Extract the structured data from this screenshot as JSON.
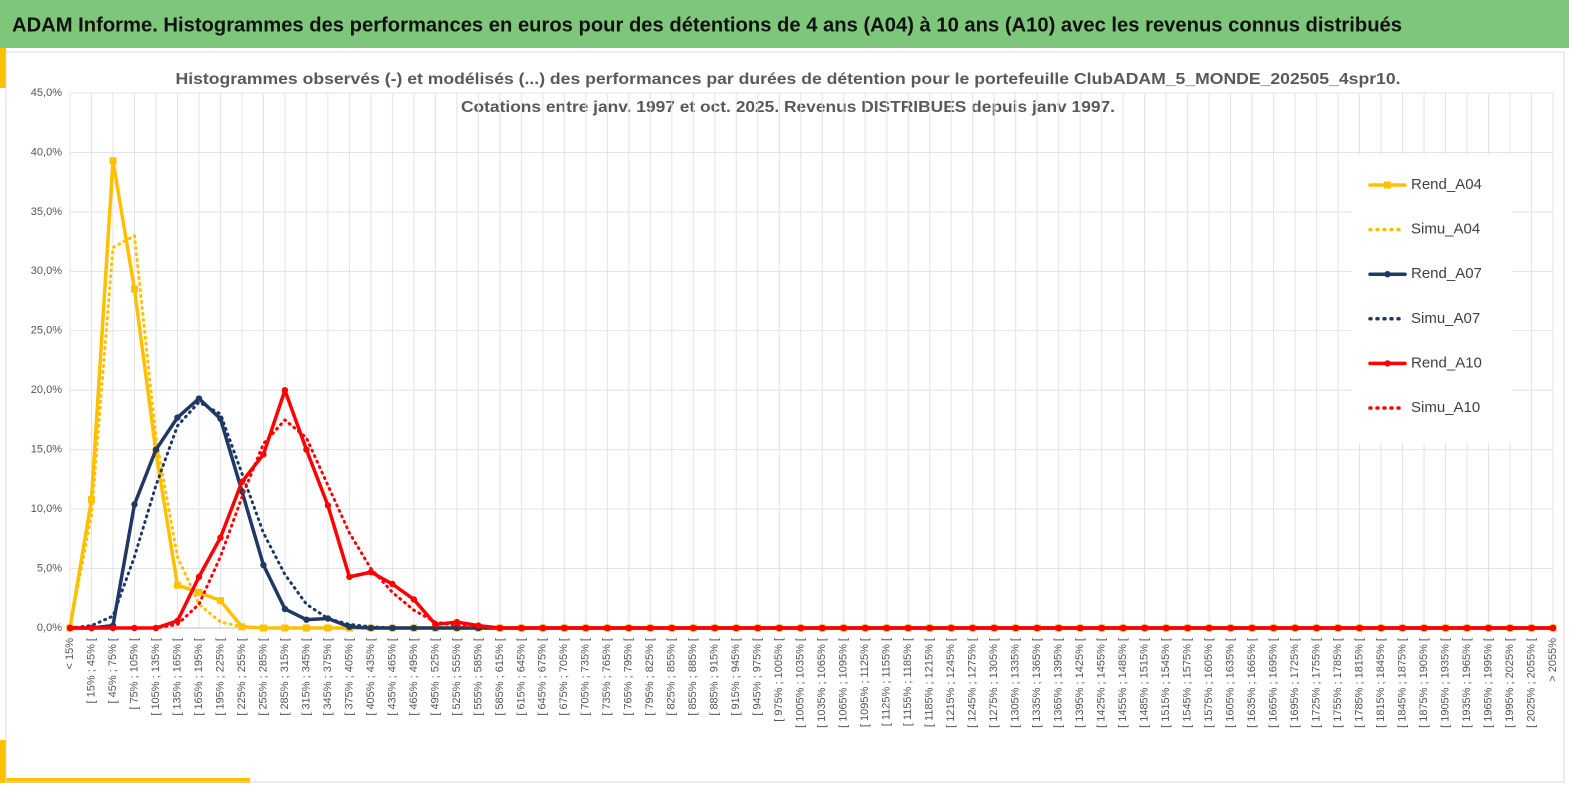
{
  "header": {
    "title": "ADAM Informe. Histogrammes des performances en euros pour des détentions de 4 ans (A04) à 10 ans (A10) avec les revenus connus distribués"
  },
  "chart_data": {
    "type": "line",
    "title": "Histogrammes observés (-) et modélisés (...) des performances par durées de détention pour le portefeuille ClubADAM_5_MONDE_202505_4spr10.",
    "subtitle": "Cotations entre janv. 1997 et oct. 2025. Revenus DISTRIBUES depuis janv 1997.",
    "categories": [
      "< 15%",
      "[ 15% ; 45% [",
      "[ 45% ; 75% [",
      "[ 75% ; 105% [",
      "[ 105% ; 135% [",
      "[ 135% ; 165% [",
      "[ 165% ; 195% [",
      "[ 195% ; 225% [",
      "[ 225% ; 255% [",
      "[ 255% ; 285% [",
      "[ 285% ; 315% [",
      "[ 315% ; 345% [",
      "[ 345% ; 375% [",
      "[ 375% ; 405% [",
      "[ 405% ; 435% [",
      "[ 435% ; 465% [",
      "[ 465% ; 495% [",
      "[ 495% ; 525% [",
      "[ 525% ; 555% [",
      "[ 555% ; 585% [",
      "[ 585% ; 615% [",
      "[ 615% ; 645% [",
      "[ 645% ; 675% [",
      "[ 675% ; 705% [",
      "[ 705% ; 735% [",
      "[ 735% ; 765% [",
      "[ 765% ; 795% [",
      "[ 795% ; 825% [",
      "[ 825% ; 855% [",
      "[ 855% ; 885% [",
      "[ 885% ; 915% [",
      "[ 915% ; 945% [",
      "[ 945% ; 975% [",
      "[ 975% ; 1005% [",
      "[ 1005% ; 1035% [",
      "[ 1035% ; 1065% [",
      "[ 1065% ; 1095% [",
      "[ 1095% ; 1125% [",
      "[ 1125% ; 1155% [",
      "[ 1155% ; 1185% [",
      "[ 1185% ; 1215% [",
      "[ 1215% ; 1245% [",
      "[ 1245% ; 1275% [",
      "[ 1275% ; 1305% [",
      "[ 1305% ; 1335% [",
      "[ 1335% ; 1365% [",
      "[ 1365% ; 1395% [",
      "[ 1395% ; 1425% [",
      "[ 1425% ; 1455% [",
      "[ 1455% ; 1485% [",
      "[ 1485% ; 1515% [",
      "[ 1515% ; 1545% [",
      "[ 1545% ; 1575% [",
      "[ 1575% ; 1605% [",
      "[ 1605% ; 1635% [",
      "[ 1635% ; 1665% [",
      "[ 1665% ; 1695% [",
      "[ 1695% ; 1725% [",
      "[ 1725% ; 1755% [",
      "[ 1755% ; 1785% [",
      "[ 1785% ; 1815% [",
      "[ 1815% ; 1845% [",
      "[ 1845% ; 1875% [",
      "[ 1875% ; 1905% [",
      "[ 1905% ; 1935% [",
      "[ 1935% ; 1965% [",
      "[ 1965% ; 1995% [",
      "[ 1995% ; 2025% [",
      "[ 2025% ; 2055% [",
      "> 2055%"
    ],
    "series": [
      {
        "name": "Rend_A04",
        "color": "#FFC000",
        "style": "solid",
        "marker": "square",
        "values": [
          0,
          10.8,
          39.3,
          28.5,
          14.8,
          3.6,
          3.0,
          2.3,
          0.1,
          0,
          0,
          0,
          0,
          0,
          0,
          0,
          0,
          0,
          0,
          0,
          0,
          0,
          0,
          0,
          0,
          0,
          0,
          0,
          0,
          0,
          0,
          0,
          0,
          0,
          0,
          0,
          0,
          0,
          0,
          0,
          0,
          0,
          0,
          0,
          0,
          0,
          0,
          0,
          0,
          0,
          0,
          0,
          0,
          0,
          0,
          0,
          0,
          0,
          0,
          0,
          0,
          0,
          0,
          0,
          0,
          0,
          0,
          0,
          0,
          0
        ]
      },
      {
        "name": "Simu_A04",
        "color": "#FFC000",
        "style": "dotted",
        "values": [
          0,
          9.5,
          32,
          33,
          16,
          6,
          2,
          0.5,
          0.1,
          0,
          0,
          0,
          0,
          0,
          0,
          0,
          0,
          0,
          0,
          0,
          0,
          0,
          0,
          0,
          0,
          0,
          0,
          0,
          0,
          0,
          0,
          0,
          0,
          0,
          0,
          0,
          0,
          0,
          0,
          0,
          0,
          0,
          0,
          0,
          0,
          0,
          0,
          0,
          0,
          0,
          0,
          0,
          0,
          0,
          0,
          0,
          0,
          0,
          0,
          0,
          0,
          0,
          0,
          0,
          0,
          0,
          0,
          0,
          0,
          0
        ]
      },
      {
        "name": "Rend_A07",
        "color": "#1F3864",
        "style": "solid",
        "marker": "circle",
        "values": [
          0,
          0,
          0.2,
          10.4,
          15,
          17.7,
          19.3,
          17.6,
          11.5,
          5.3,
          1.6,
          0.7,
          0.8,
          0.1,
          0,
          0,
          0,
          0,
          0,
          0,
          0,
          0,
          0,
          0,
          0,
          0,
          0,
          0,
          0,
          0,
          0,
          0,
          0,
          0,
          0,
          0,
          0,
          0,
          0,
          0,
          0,
          0,
          0,
          0,
          0,
          0,
          0,
          0,
          0,
          0,
          0,
          0,
          0,
          0,
          0,
          0,
          0,
          0,
          0,
          0,
          0,
          0,
          0,
          0,
          0,
          0,
          0,
          0,
          0,
          0
        ]
      },
      {
        "name": "Simu_A07",
        "color": "#1F3864",
        "style": "dotted",
        "values": [
          0,
          0.2,
          1,
          6,
          12,
          17,
          19,
          18,
          13,
          8,
          4.5,
          2,
          0.8,
          0.3,
          0.1,
          0,
          0,
          0,
          0,
          0,
          0,
          0,
          0,
          0,
          0,
          0,
          0,
          0,
          0,
          0,
          0,
          0,
          0,
          0,
          0,
          0,
          0,
          0,
          0,
          0,
          0,
          0,
          0,
          0,
          0,
          0,
          0,
          0,
          0,
          0,
          0,
          0,
          0,
          0,
          0,
          0,
          0,
          0,
          0,
          0,
          0,
          0,
          0,
          0,
          0,
          0,
          0,
          0,
          0,
          0
        ]
      },
      {
        "name": "Rend_A10",
        "color": "#FF0000",
        "style": "solid",
        "marker": "circle",
        "values": [
          0,
          0,
          0,
          0,
          0,
          0.6,
          4.3,
          7.6,
          12.3,
          14.6,
          20,
          15,
          10.3,
          4.3,
          4.7,
          3.7,
          2.4,
          0.3,
          0.5,
          0.2,
          0,
          0,
          0,
          0,
          0,
          0,
          0,
          0,
          0,
          0,
          0,
          0,
          0,
          0,
          0,
          0,
          0,
          0,
          0,
          0,
          0,
          0,
          0,
          0,
          0,
          0,
          0,
          0,
          0,
          0,
          0,
          0,
          0,
          0,
          0,
          0,
          0,
          0,
          0,
          0,
          0,
          0,
          0,
          0,
          0,
          0,
          0,
          0,
          0,
          0
        ]
      },
      {
        "name": "Simu_A10",
        "color": "#FF0000",
        "style": "dotted",
        "values": [
          0,
          0,
          0,
          0,
          0,
          0.3,
          2,
          6,
          11,
          15.5,
          17.5,
          16,
          12,
          8,
          5,
          3,
          1.5,
          0.5,
          0.2,
          0.1,
          0,
          0,
          0,
          0,
          0,
          0,
          0,
          0,
          0,
          0,
          0,
          0,
          0,
          0,
          0,
          0,
          0,
          0,
          0,
          0,
          0,
          0,
          0,
          0,
          0,
          0,
          0,
          0,
          0,
          0,
          0,
          0,
          0,
          0,
          0,
          0,
          0,
          0,
          0,
          0,
          0,
          0,
          0,
          0,
          0,
          0,
          0,
          0,
          0,
          0
        ]
      }
    ],
    "ylim": [
      0,
      45
    ],
    "yticks": [
      {
        "value": 0,
        "label": "0,0%"
      },
      {
        "value": 5,
        "label": "5,0%"
      },
      {
        "value": 10,
        "label": "10,0%"
      },
      {
        "value": 15,
        "label": "15,0%"
      },
      {
        "value": 20,
        "label": "20,0%"
      },
      {
        "value": 25,
        "label": "25,0%"
      },
      {
        "value": 30,
        "label": "30,0%"
      },
      {
        "value": 35,
        "label": "35,0%"
      },
      {
        "value": 40,
        "label": "40,0%"
      },
      {
        "value": 45,
        "label": "45,0%"
      }
    ],
    "grid": true,
    "legend": "right"
  }
}
